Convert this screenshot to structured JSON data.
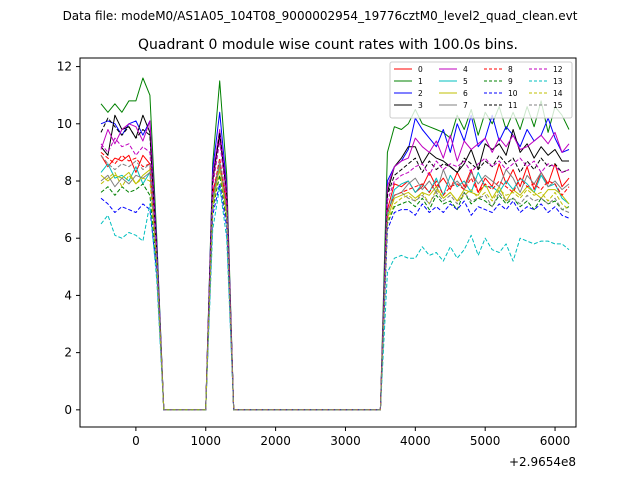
{
  "header": {
    "supertitle": "Data file: modeM0/AS1A05_104T08_9000002954_19776cztM0_level2_quad_clean.evt"
  },
  "chart_data": {
    "type": "line",
    "title": "Quadrant 0 module wise count rates with 100.0s bins.",
    "xlabel": "",
    "ylabel": "",
    "x_offset_label": "+2.9654e8",
    "xlim": [
      -800,
      6300
    ],
    "ylim": [
      -0.6,
      12.3
    ],
    "xticks": [
      0,
      1000,
      2000,
      3000,
      4000,
      5000,
      6000
    ],
    "xtick_labels": [
      "0",
      "1000",
      "2000",
      "3000",
      "4000",
      "5000",
      "6000"
    ],
    "yticks": [
      0,
      2,
      4,
      6,
      8,
      10,
      12
    ],
    "ytick_labels": [
      "0",
      "2",
      "4",
      "6",
      "8",
      "10",
      "12"
    ],
    "grid": false,
    "legend_position": "top-right",
    "x": [
      -500,
      -400,
      -300,
      -200,
      -100,
      0,
      100,
      200,
      300,
      400,
      1000,
      1100,
      1200,
      1300,
      1400,
      3500,
      3600,
      3700,
      3800,
      3900,
      4000,
      4100,
      4200,
      4300,
      4400,
      4500,
      4600,
      4700,
      4800,
      4900,
      5000,
      5100,
      5200,
      5300,
      5400,
      5500,
      5600,
      5700,
      5800,
      5900,
      6000,
      6100,
      6200
    ],
    "gap_after": [
      400,
      1400
    ],
    "series": [
      {
        "name": "0",
        "color": "#ff0000",
        "dashed": false,
        "values": [
          8.9,
          8.5,
          8.8,
          8.7,
          8.9,
          8.3,
          8.9,
          8.6,
          5.2,
          0,
          0,
          7.6,
          8.6,
          7.3,
          0,
          0,
          7.0,
          7.9,
          7.8,
          8.0,
          7.6,
          7.8,
          8.3,
          7.8,
          8.1,
          7.7,
          8.3,
          7.8,
          8.4,
          7.6,
          8.1,
          7.8,
          8.6,
          7.9,
          8.4,
          7.8,
          8.5,
          7.7,
          8.3,
          7.9,
          8.6,
          7.8,
          8.1
        ]
      },
      {
        "name": "1",
        "color": "#008000",
        "dashed": false,
        "values": [
          10.7,
          10.4,
          10.7,
          10.4,
          10.8,
          10.8,
          11.6,
          11.0,
          6.0,
          0,
          0,
          8.6,
          11.5,
          8.2,
          0,
          0,
          9.0,
          9.9,
          9.8,
          10.0,
          10.5,
          10.0,
          9.9,
          9.8,
          9.7,
          9.5,
          10.3,
          9.8,
          10.5,
          9.6,
          10.4,
          10.0,
          10.6,
          9.8,
          10.4,
          9.8,
          10.6,
          9.9,
          10.8,
          9.7,
          10.6,
          10.3,
          9.8
        ]
      },
      {
        "name": "2",
        "color": "#0000ff",
        "dashed": false,
        "values": [
          10.0,
          10.1,
          10.0,
          9.6,
          10.0,
          10.1,
          9.6,
          10.1,
          5.8,
          0,
          0,
          8.4,
          10.4,
          7.8,
          0,
          0,
          8.0,
          8.5,
          8.7,
          9.1,
          10.2,
          9.8,
          9.5,
          9.2,
          9.8,
          9.0,
          10.0,
          9.4,
          10.3,
          9.2,
          9.5,
          10.3,
          9.4,
          9.9,
          9.6,
          9.2,
          9.8,
          9.4,
          9.6,
          10.2,
          9.5,
          9.0,
          9.1
        ]
      },
      {
        "name": "3",
        "color": "#000000",
        "dashed": false,
        "values": [
          9.2,
          8.9,
          10.3,
          9.8,
          9.9,
          9.5,
          10.3,
          9.7,
          5.5,
          0,
          0,
          8.1,
          9.6,
          7.6,
          0,
          0,
          7.6,
          8.5,
          8.8,
          9.2,
          9.2,
          8.6,
          9.0,
          8.8,
          8.7,
          8.5,
          8.3,
          8.6,
          9.1,
          8.4,
          9.3,
          9.1,
          9.3,
          8.9,
          9.8,
          9.0,
          9.3,
          8.8,
          9.2,
          8.9,
          9.1,
          8.7,
          8.7
        ]
      },
      {
        "name": "4",
        "color": "#bf00bf",
        "dashed": false,
        "values": [
          9.1,
          9.8,
          9.3,
          9.8,
          10.0,
          9.9,
          9.4,
          10.1,
          5.6,
          0,
          0,
          8.2,
          9.8,
          7.7,
          0,
          0,
          7.8,
          8.5,
          8.7,
          8.8,
          9.5,
          9.2,
          9.0,
          9.4,
          8.8,
          9.6,
          8.7,
          9.4,
          9.1,
          9.3,
          9.5,
          9.0,
          9.5,
          9.2,
          9.6,
          9.1,
          9.2,
          9.4,
          9.6,
          9.3,
          9.7,
          9.0,
          9.3
        ]
      },
      {
        "name": "5",
        "color": "#00bfbf",
        "dashed": false,
        "values": [
          8.3,
          8.6,
          8.1,
          8.2,
          8.0,
          8.5,
          7.9,
          8.3,
          5.3,
          0,
          0,
          7.4,
          8.7,
          7.0,
          0,
          0,
          6.8,
          7.7,
          7.9,
          8.0,
          7.6,
          7.9,
          7.6,
          8.1,
          7.5,
          8.2,
          7.8,
          8.0,
          7.6,
          8.3,
          7.8,
          7.8,
          7.6,
          8.0,
          7.7,
          8.1,
          7.9,
          7.6,
          8.2,
          7.8,
          7.9,
          7.4,
          7.2
        ]
      },
      {
        "name": "6",
        "color": "#bfbf00",
        "dashed": false,
        "values": [
          8.2,
          8.0,
          8.2,
          8.1,
          8.3,
          7.9,
          8.2,
          8.4,
          5.1,
          0,
          0,
          7.2,
          8.5,
          6.8,
          0,
          0,
          6.7,
          7.4,
          7.5,
          7.6,
          7.4,
          7.6,
          7.5,
          7.8,
          7.4,
          7.6,
          7.3,
          7.7,
          7.6,
          7.5,
          7.9,
          7.4,
          7.8,
          7.3,
          7.7,
          7.5,
          7.8,
          7.6,
          7.4,
          7.7,
          7.7,
          7.5,
          7.2
        ]
      },
      {
        "name": "7",
        "color": "#808080",
        "dashed": false,
        "values": [
          8.0,
          8.2,
          7.8,
          8.1,
          7.9,
          8.2,
          8.1,
          8.3,
          5.2,
          0,
          0,
          7.3,
          8.6,
          7.0,
          0,
          0,
          6.9,
          7.5,
          7.6,
          7.9,
          8.1,
          7.7,
          8.0,
          7.6,
          8.4,
          7.8,
          8.0,
          7.7,
          8.3,
          7.9,
          8.2,
          8.0,
          7.8,
          8.4,
          8.1,
          7.6,
          8.2,
          7.9,
          8.3,
          7.8,
          8.0,
          7.7,
          7.9
        ]
      },
      {
        "name": "8",
        "color": "#ff0000",
        "dashed": true,
        "values": [
          9.0,
          8.8,
          8.6,
          8.9,
          8.7,
          8.8,
          8.5,
          8.6,
          5.3,
          0,
          0,
          7.5,
          8.8,
          7.1,
          0,
          0,
          6.9,
          7.5,
          7.6,
          7.7,
          7.8,
          7.9,
          7.6,
          8.0,
          7.5,
          7.8,
          7.9,
          7.7,
          8.1,
          7.6,
          7.9,
          7.7,
          8.0,
          7.8,
          7.6,
          8.1,
          7.8,
          7.9,
          7.7,
          8.0,
          7.9,
          7.5,
          7.8
        ]
      },
      {
        "name": "9",
        "color": "#008000",
        "dashed": true,
        "values": [
          7.6,
          7.8,
          7.5,
          7.8,
          7.6,
          7.7,
          7.9,
          7.5,
          5.0,
          0,
          0,
          7.0,
          8.2,
          6.6,
          0,
          0,
          6.5,
          7.1,
          7.2,
          7.3,
          7.1,
          7.4,
          7.0,
          7.5,
          7.2,
          7.3,
          7.0,
          7.6,
          7.2,
          7.4,
          7.3,
          7.1,
          7.5,
          7.2,
          7.4,
          7.1,
          7.3,
          7.0,
          7.4,
          7.2,
          7.3,
          7.0,
          7.1
        ]
      },
      {
        "name": "10",
        "color": "#0000ff",
        "dashed": true,
        "values": [
          7.4,
          7.2,
          6.9,
          7.1,
          7.0,
          6.9,
          7.2,
          7.0,
          4.8,
          0,
          0,
          6.8,
          7.9,
          6.4,
          0,
          0,
          6.3,
          6.9,
          7.0,
          7.0,
          6.8,
          7.2,
          6.9,
          7.1,
          6.9,
          7.2,
          7.0,
          7.3,
          6.8,
          7.1,
          7.0,
          6.9,
          7.2,
          7.0,
          7.3,
          6.9,
          7.1,
          7.0,
          7.2,
          6.9,
          7.1,
          6.8,
          6.7
        ]
      },
      {
        "name": "11",
        "color": "#000000",
        "dashed": true,
        "values": [
          9.7,
          10.2,
          9.9,
          9.6,
          9.9,
          9.5,
          9.8,
          9.6,
          5.5,
          0,
          0,
          8.0,
          9.7,
          7.5,
          0,
          0,
          7.5,
          8.2,
          8.4,
          8.6,
          8.8,
          8.3,
          8.7,
          8.4,
          8.6,
          8.5,
          8.3,
          8.8,
          8.6,
          8.4,
          8.7,
          8.5,
          8.9,
          8.6,
          8.8,
          8.3,
          8.7,
          8.4,
          8.8,
          8.5,
          8.6,
          8.3,
          8.4
        ]
      },
      {
        "name": "12",
        "color": "#bf00bf",
        "dashed": true,
        "values": [
          9.3,
          9.0,
          9.5,
          9.2,
          9.3,
          8.9,
          9.2,
          9.0,
          5.4,
          0,
          0,
          7.8,
          9.4,
          7.3,
          0,
          0,
          7.3,
          8.0,
          8.2,
          8.3,
          8.5,
          8.6,
          8.2,
          8.7,
          8.4,
          8.6,
          8.5,
          8.7,
          8.3,
          8.6,
          8.8,
          8.5,
          8.7,
          8.4,
          8.6,
          8.8,
          8.5,
          8.7,
          8.3,
          8.6,
          8.5,
          8.3,
          8.4
        ]
      },
      {
        "name": "13",
        "color": "#00bfbf",
        "dashed": true,
        "values": [
          6.5,
          6.8,
          6.1,
          6.0,
          6.2,
          6.1,
          5.9,
          7.2,
          4.5,
          0,
          0,
          6.3,
          7.8,
          6.0,
          0,
          0,
          4.8,
          5.3,
          5.4,
          5.3,
          5.3,
          5.7,
          5.4,
          5.5,
          5.2,
          5.7,
          5.3,
          5.6,
          6.1,
          5.4,
          6.0,
          5.6,
          5.5,
          5.8,
          5.2,
          6.0,
          5.9,
          5.8,
          5.9,
          5.9,
          5.8,
          5.8,
          5.6
        ]
      },
      {
        "name": "14",
        "color": "#bfbf00",
        "dashed": true,
        "values": [
          7.9,
          8.1,
          8.3,
          7.8,
          8.2,
          7.9,
          8.1,
          8.0,
          5.1,
          0,
          0,
          7.1,
          8.4,
          6.8,
          0,
          0,
          6.6,
          7.2,
          7.4,
          7.5,
          7.3,
          7.6,
          7.2,
          7.7,
          7.4,
          7.6,
          7.3,
          7.5,
          7.7,
          7.4,
          7.6,
          7.3,
          7.7,
          7.5,
          7.6,
          7.4,
          7.7,
          7.5,
          7.6,
          7.3,
          7.6,
          7.2,
          7.0
        ]
      },
      {
        "name": "15",
        "color": "#808080",
        "dashed": true,
        "values": [
          8.9,
          8.6,
          8.4,
          8.6,
          8.5,
          8.7,
          8.4,
          8.6,
          5.2,
          0,
          0,
          7.3,
          8.7,
          7.0,
          0,
          0,
          6.9,
          7.5,
          7.6,
          7.4,
          7.3,
          7.5,
          7.2,
          7.6,
          7.3,
          7.5,
          7.2,
          7.6,
          7.3,
          7.4,
          7.5,
          7.1,
          7.6,
          7.3,
          7.4,
          7.2,
          7.5,
          7.3,
          7.4,
          7.2,
          7.4,
          7.0,
          6.9
        ]
      }
    ]
  }
}
